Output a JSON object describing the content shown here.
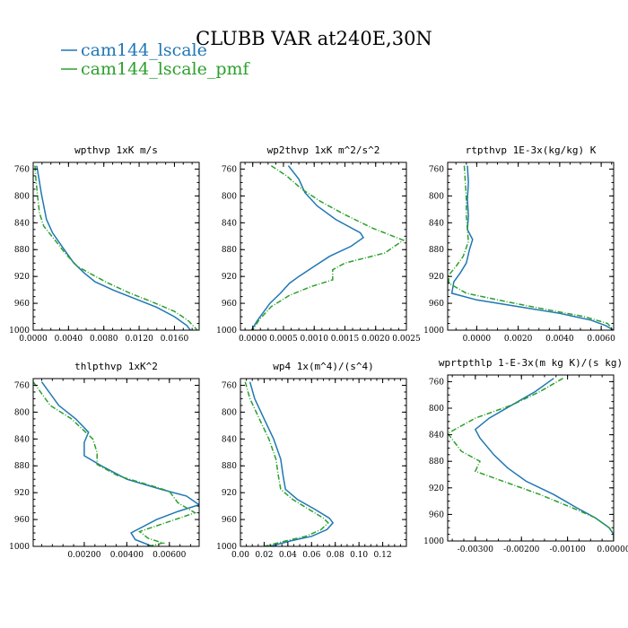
{
  "title": "CLUBB VAR at240E,30N",
  "colors": {
    "series1": "#1f77b4",
    "series2": "#2ca02c"
  },
  "legend": [
    {
      "name": "cam144_lscale",
      "color": "#1f77b4",
      "dash": ""
    },
    {
      "name": "cam144_lscale_pmf",
      "color": "#2ca02c",
      "dash": "6,2,1,2"
    }
  ],
  "chart_data": [
    {
      "type": "line",
      "title": "wpthvp   1xK m/s",
      "x_range": [
        0.0,
        0.0188
      ],
      "y_range": [
        1000,
        750
      ],
      "x_ticks": [
        {
          "v": 0.0,
          "label": "0.0000"
        },
        {
          "v": 0.004,
          "label": "0.0040"
        },
        {
          "v": 0.008,
          "label": "0.0080"
        },
        {
          "v": 0.012,
          "label": "0.0120"
        },
        {
          "v": 0.016,
          "label": "0.0160"
        }
      ],
      "y_ticks": [
        760,
        800,
        840,
        880,
        920,
        960,
        1000
      ],
      "series": [
        {
          "name": "cam144_lscale",
          "points": [
            [
              0.0004,
              755
            ],
            [
              0.0006,
              770
            ],
            [
              0.0009,
              795
            ],
            [
              0.0012,
              815
            ],
            [
              0.0015,
              835
            ],
            [
              0.0022,
              855
            ],
            [
              0.0034,
              878
            ],
            [
              0.0046,
              900
            ],
            [
              0.0058,
              915
            ],
            [
              0.007,
              928
            ],
            [
              0.009,
              940
            ],
            [
              0.0115,
              953
            ],
            [
              0.014,
              966
            ],
            [
              0.016,
              980
            ],
            [
              0.0174,
              993
            ],
            [
              0.0178,
              1000
            ]
          ]
        },
        {
          "name": "cam144_lscale_pmf",
          "points": [
            [
              0.0002,
              755
            ],
            [
              0.0003,
              775
            ],
            [
              0.0005,
              800
            ],
            [
              0.0007,
              825
            ],
            [
              0.0012,
              845
            ],
            [
              0.0026,
              868
            ],
            [
              0.0036,
              885
            ],
            [
              0.005,
              905
            ],
            [
              0.0068,
              918
            ],
            [
              0.0085,
              930
            ],
            [
              0.011,
              945
            ],
            [
              0.0135,
              958
            ],
            [
              0.016,
              972
            ],
            [
              0.0175,
              985
            ],
            [
              0.0186,
              1000
            ]
          ]
        }
      ]
    },
    {
      "type": "line",
      "title": "wp2thvp   1xK m^2/s^2",
      "x_range": [
        -0.0002,
        0.0025
      ],
      "y_range": [
        1000,
        750
      ],
      "x_ticks": [
        {
          "v": 0.0,
          "label": "0.0000"
        },
        {
          "v": 0.0005,
          "label": "0.0005"
        },
        {
          "v": 0.001,
          "label": "0.0010"
        },
        {
          "v": 0.0015,
          "label": "0.0015"
        },
        {
          "v": 0.002,
          "label": "0.0020"
        },
        {
          "v": 0.0025,
          "label": "0.0025"
        }
      ],
      "y_ticks": [
        760,
        800,
        840,
        880,
        920,
        960,
        1000
      ],
      "series": [
        {
          "name": "cam144_lscale",
          "points": [
            [
              0.00058,
              755
            ],
            [
              0.00075,
              775
            ],
            [
              0.00085,
              795
            ],
            [
              0.00105,
              815
            ],
            [
              0.00135,
              835
            ],
            [
              0.00175,
              855
            ],
            [
              0.0018,
              862
            ],
            [
              0.0016,
              875
            ],
            [
              0.00125,
              890
            ],
            [
              0.001,
              905
            ],
            [
              0.00075,
              920
            ],
            [
              0.0006,
              930
            ],
            [
              0.00045,
              945
            ],
            [
              0.00028,
              960
            ],
            [
              8e-05,
              985
            ],
            [
              -2e-05,
              1000
            ]
          ]
        },
        {
          "name": "cam144_lscale_pmf",
          "points": [
            [
              0.0003,
              755
            ],
            [
              0.00055,
              770
            ],
            [
              0.0008,
              790
            ],
            [
              0.0011,
              808
            ],
            [
              0.0015,
              828
            ],
            [
              0.00195,
              848
            ],
            [
              0.00245,
              866
            ],
            [
              0.00215,
              885
            ],
            [
              0.0015,
              900
            ],
            [
              0.0013,
              910
            ],
            [
              0.0013,
              925
            ],
            [
              0.00095,
              935
            ],
            [
              0.0006,
              948
            ],
            [
              0.0003,
              965
            ],
            [
              0.0001,
              985
            ],
            [
              0.0,
              1000
            ]
          ]
        }
      ]
    },
    {
      "type": "line",
      "title": "rtpthvp   1E-3x(kg/kg) K",
      "x_range": [
        -0.0014,
        0.0066
      ],
      "y_range": [
        1000,
        750
      ],
      "x_ticks": [
        {
          "v": 0.0,
          "label": "0.0000"
        },
        {
          "v": 0.002,
          "label": "0.0020"
        },
        {
          "v": 0.004,
          "label": "0.0040"
        },
        {
          "v": 0.006,
          "label": "0.0060"
        }
      ],
      "y_ticks": [
        760,
        800,
        840,
        880,
        920,
        960,
        1000
      ],
      "series": [
        {
          "name": "cam144_lscale",
          "points": [
            [
              -0.00045,
              755
            ],
            [
              -0.0004,
              780
            ],
            [
              -0.00045,
              805
            ],
            [
              -0.0004,
              830
            ],
            [
              -0.00045,
              850
            ],
            [
              -0.0002,
              865
            ],
            [
              -0.00035,
              880
            ],
            [
              -0.0005,
              900
            ],
            [
              -0.0008,
              915
            ],
            [
              -0.0011,
              928
            ],
            [
              -0.0012,
              945
            ],
            [
              0.0,
              955
            ],
            [
              0.002,
              965
            ],
            [
              0.004,
              975
            ],
            [
              0.0055,
              985
            ],
            [
              0.0062,
              993
            ],
            [
              0.0066,
              1000
            ]
          ]
        },
        {
          "name": "cam144_lscale_pmf",
          "points": [
            [
              -0.0006,
              755
            ],
            [
              -0.00055,
              780
            ],
            [
              -0.0005,
              805
            ],
            [
              -0.0005,
              830
            ],
            [
              -0.00045,
              850
            ],
            [
              -0.0004,
              868
            ],
            [
              -0.00065,
              890
            ],
            [
              -0.001,
              905
            ],
            [
              -0.00135,
              918
            ],
            [
              -0.00135,
              930
            ],
            [
              -0.0005,
              945
            ],
            [
              0.0015,
              958
            ],
            [
              0.0035,
              970
            ],
            [
              0.0052,
              980
            ],
            [
              0.0063,
              990
            ],
            [
              0.0066,
              1000
            ]
          ]
        }
      ]
    },
    {
      "type": "line",
      "title": "thlpthvp   1xK^2",
      "x_range": [
        -0.0004,
        0.0074
      ],
      "y_range": [
        1000,
        750
      ],
      "x_ticks": [
        {
          "v": 0.002,
          "label": "0.00200"
        },
        {
          "v": 0.004,
          "label": "0.00400"
        },
        {
          "v": 0.006,
          "label": "0.00600"
        }
      ],
      "y_ticks": [
        760,
        800,
        840,
        880,
        920,
        960,
        1000
      ],
      "series": [
        {
          "name": "cam144_lscale",
          "points": [
            [
              0.0,
              755
            ],
            [
              0.0008,
              790
            ],
            [
              0.0016,
              810
            ],
            [
              0.0022,
              830
            ],
            [
              0.002,
              845
            ],
            [
              0.002,
              865
            ],
            [
              0.0028,
              880
            ],
            [
              0.004,
              900
            ],
            [
              0.0056,
              915
            ],
            [
              0.0068,
              925
            ],
            [
              0.0074,
              938
            ],
            [
              0.0064,
              948
            ],
            [
              0.0054,
              960
            ],
            [
              0.0042,
              980
            ],
            [
              0.0044,
              990
            ],
            [
              0.0052,
              1000
            ]
          ]
        },
        {
          "name": "cam144_lscale_pmf",
          "points": [
            [
              -0.0004,
              755
            ],
            [
              0.0004,
              790
            ],
            [
              0.0014,
              810
            ],
            [
              0.0024,
              840
            ],
            [
              0.0026,
              860
            ],
            [
              0.0026,
              878
            ],
            [
              0.0036,
              895
            ],
            [
              0.0052,
              910
            ],
            [
              0.006,
              918
            ],
            [
              0.0064,
              935
            ],
            [
              0.0072,
              950
            ],
            [
              0.006,
              963
            ],
            [
              0.0046,
              978
            ],
            [
              0.005,
              988
            ],
            [
              0.0057,
              995
            ],
            [
              0.005,
              1000
            ]
          ]
        }
      ]
    },
    {
      "type": "line",
      "title": "wp4   1x(m^4)/(s^4)",
      "x_range": [
        0.0,
        0.14
      ],
      "y_range": [
        1000,
        750
      ],
      "x_ticks": [
        {
          "v": 0.0,
          "label": "0.00"
        },
        {
          "v": 0.02,
          "label": "0.02"
        },
        {
          "v": 0.04,
          "label": "0.04"
        },
        {
          "v": 0.06,
          "label": "0.06"
        },
        {
          "v": 0.08,
          "label": "0.08"
        },
        {
          "v": 0.1,
          "label": "0.10"
        },
        {
          "v": 0.12,
          "label": "0.12"
        }
      ],
      "y_ticks": [
        760,
        800,
        840,
        880,
        920,
        960,
        1000
      ],
      "series": [
        {
          "name": "cam144_lscale",
          "points": [
            [
              0.008,
              755
            ],
            [
              0.012,
              780
            ],
            [
              0.02,
              810
            ],
            [
              0.028,
              840
            ],
            [
              0.034,
              870
            ],
            [
              0.036,
              895
            ],
            [
              0.038,
              915
            ],
            [
              0.048,
              930
            ],
            [
              0.063,
              945
            ],
            [
              0.075,
              958
            ],
            [
              0.078,
              965
            ],
            [
              0.073,
              975
            ],
            [
              0.06,
              985
            ],
            [
              0.042,
              992
            ],
            [
              0.025,
              1000
            ]
          ]
        },
        {
          "name": "cam144_lscale_pmf",
          "points": [
            [
              0.004,
              755
            ],
            [
              0.008,
              780
            ],
            [
              0.016,
              810
            ],
            [
              0.024,
              840
            ],
            [
              0.03,
              870
            ],
            [
              0.032,
              895
            ],
            [
              0.034,
              915
            ],
            [
              0.044,
              930
            ],
            [
              0.058,
              945
            ],
            [
              0.07,
              958
            ],
            [
              0.074,
              965
            ],
            [
              0.068,
              975
            ],
            [
              0.055,
              985
            ],
            [
              0.038,
              992
            ],
            [
              0.02,
              1000
            ]
          ]
        }
      ]
    },
    {
      "type": "line",
      "title": "wprtpthlp   1-E-3x(m kg K)/(s kg)",
      "x_range": [
        -0.0036,
        0.0
      ],
      "y_range": [
        1000,
        750
      ],
      "x_ticks": [
        {
          "v": -0.003,
          "label": "-0.00300"
        },
        {
          "v": -0.002,
          "label": "-0.00200"
        },
        {
          "v": -0.001,
          "label": "-0.00100"
        },
        {
          "v": 0.0,
          "label": "0.00000"
        }
      ],
      "y_ticks": [
        760,
        800,
        840,
        880,
        920,
        960,
        1000
      ],
      "series": [
        {
          "name": "cam144_lscale",
          "points": [
            [
              -0.0013,
              755
            ],
            [
              -0.0017,
              775
            ],
            [
              -0.0022,
              795
            ],
            [
              -0.0027,
              815
            ],
            [
              -0.003,
              832
            ],
            [
              -0.0029,
              845
            ],
            [
              -0.0026,
              870
            ],
            [
              -0.0023,
              890
            ],
            [
              -0.0019,
              910
            ],
            [
              -0.0013,
              930
            ],
            [
              -0.0008,
              950
            ],
            [
              -0.0004,
              965
            ],
            [
              -0.0001,
              980
            ],
            [
              0.0,
              990
            ],
            [
              0.0,
              1000
            ]
          ]
        },
        {
          "name": "cam144_lscale_pmf",
          "points": [
            [
              -0.0011,
              755
            ],
            [
              -0.0016,
              775
            ],
            [
              -0.0022,
              795
            ],
            [
              -0.003,
              815
            ],
            [
              -0.0036,
              838
            ],
            [
              -0.0033,
              865
            ],
            [
              -0.0029,
              880
            ],
            [
              -0.003,
              895
            ],
            [
              -0.0024,
              910
            ],
            [
              -0.0016,
              930
            ],
            [
              -0.0009,
              950
            ],
            [
              -0.0004,
              965
            ],
            [
              -0.0001,
              980
            ],
            [
              0.0,
              990
            ],
            [
              0.0,
              1000
            ]
          ]
        }
      ]
    }
  ]
}
